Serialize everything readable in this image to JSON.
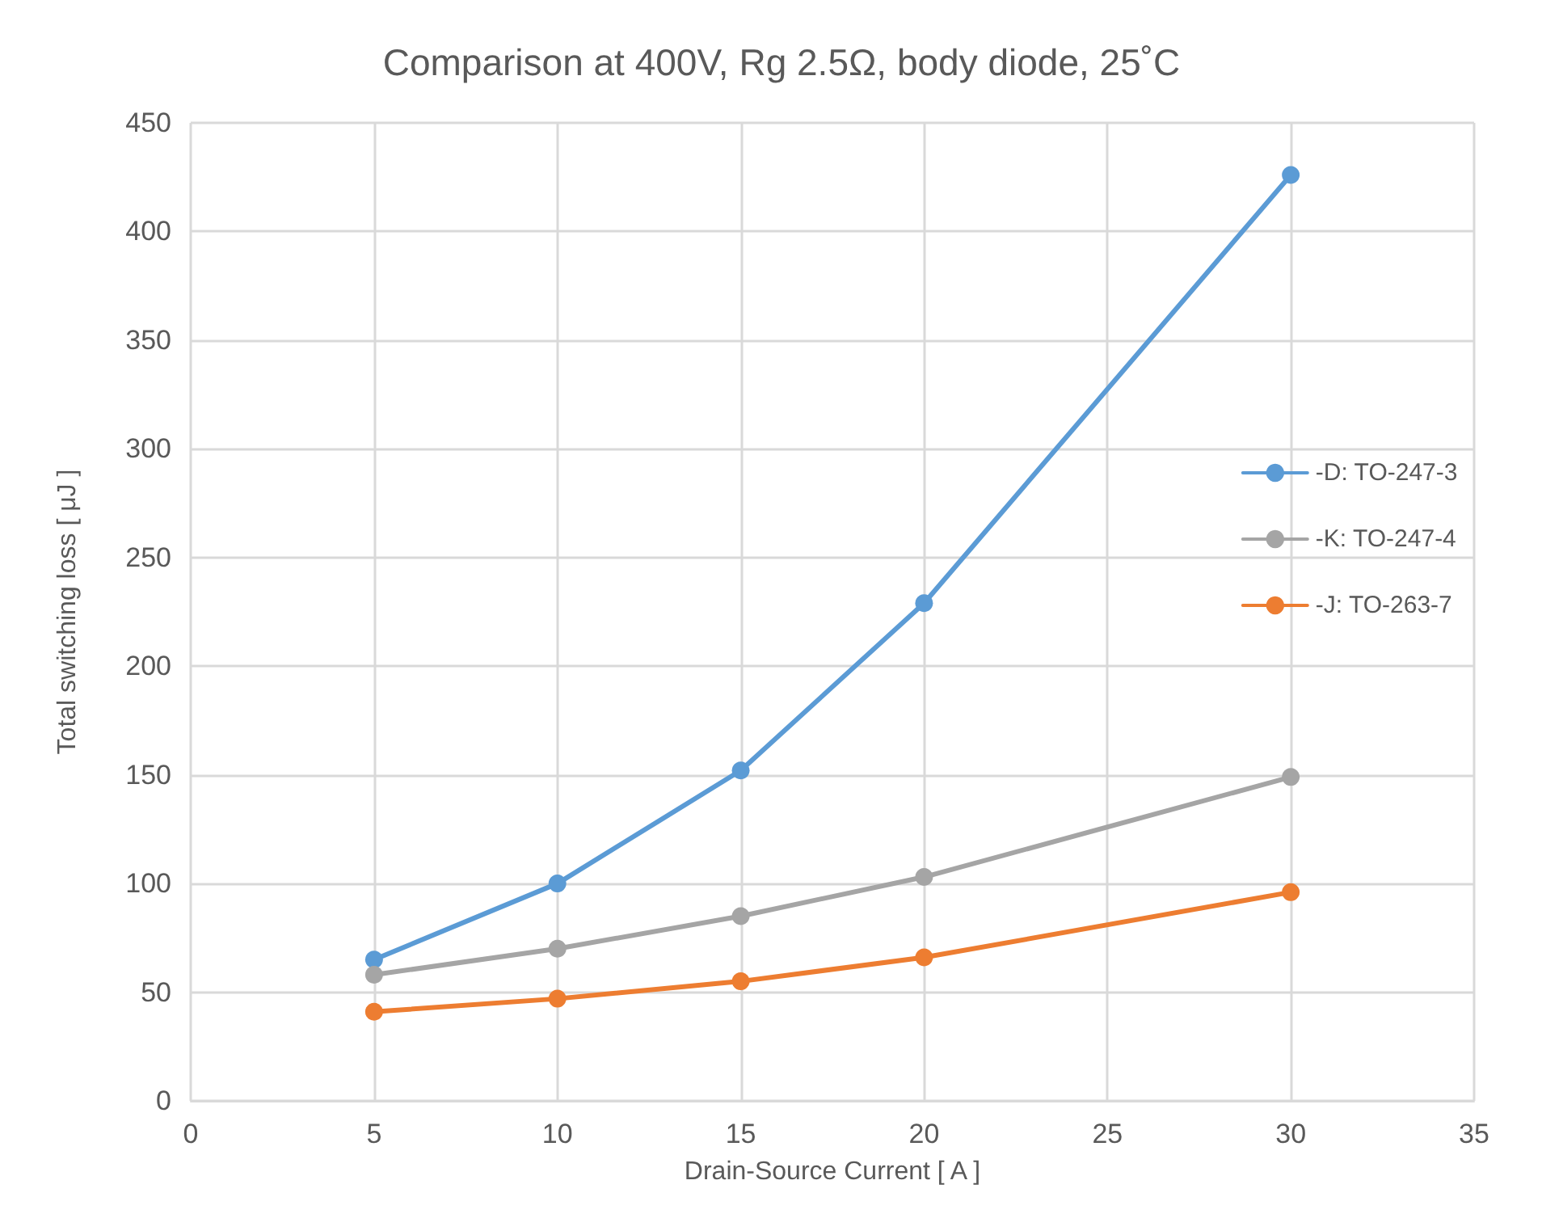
{
  "chart_data": {
    "type": "line",
    "title": "Comparison at 400V, Rg 2.5Ω, body diode, 25˚C",
    "xlabel": "Drain-Source Current [ A ]",
    "ylabel": "Total switching loss [ μJ ]",
    "x": [
      5,
      10,
      15,
      20,
      30
    ],
    "series": [
      {
        "name": "-D: TO-247-3",
        "color": "#5b9bd5",
        "values": [
          65,
          100,
          152,
          229,
          426
        ]
      },
      {
        "name": "-K: TO-247-4",
        "color": "#a5a5a5",
        "values": [
          58,
          70,
          85,
          103,
          149
        ]
      },
      {
        "name": "-J: TO-263-7",
        "color": "#ed7d31",
        "values": [
          41,
          47,
          55,
          66,
          96
        ]
      }
    ],
    "xlim": [
      0,
      35
    ],
    "xticks": [
      0,
      5,
      10,
      15,
      20,
      25,
      30,
      35
    ],
    "ylim": [
      0,
      450
    ],
    "yticks": [
      0,
      50,
      100,
      150,
      200,
      250,
      300,
      350,
      400,
      450
    ],
    "grid": true,
    "legend": "right",
    "marker": "circle",
    "line_style": "solid"
  }
}
